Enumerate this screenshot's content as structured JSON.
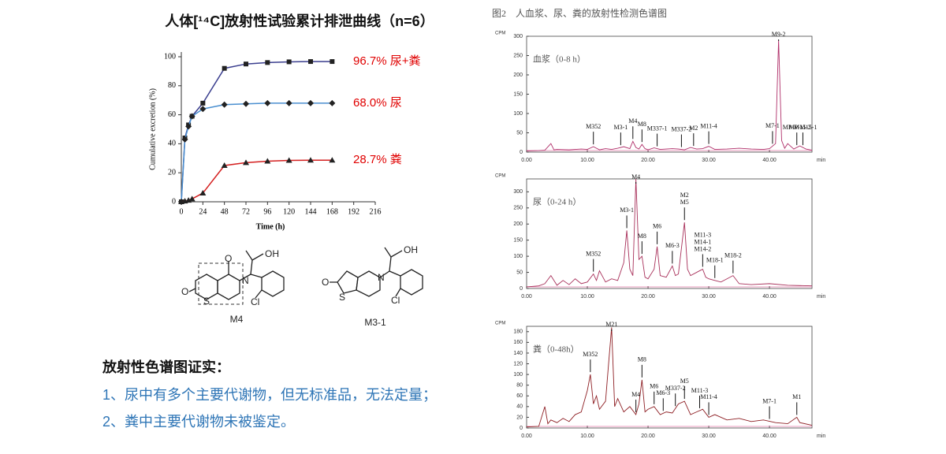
{
  "title": "人体[¹⁴C]放射性试验累计排泄曲线（n=6）",
  "figure_caption": "图2　人血浆、尿、粪的放射性检测色谱图",
  "chart_data": [
    {
      "type": "line",
      "x_label": "Time (h)",
      "y_label": "Cumulative excretion (%)",
      "label_color": "#e00000",
      "x": [
        0,
        4,
        8,
        12,
        24,
        48,
        72,
        96,
        120,
        144,
        168
      ],
      "series": [
        {
          "name": "96.7% 尿+粪",
          "color": "#3b3f8f",
          "marker": "square",
          "values": [
            0,
            44,
            53,
            59,
            68,
            92,
            95,
            96,
            96.5,
            96.7,
            96.7
          ]
        },
        {
          "name": "68.0% 尿",
          "color": "#4a8fd0",
          "marker": "diamond",
          "values": [
            0,
            43,
            52,
            59,
            64,
            67,
            67.5,
            68,
            68,
            68,
            68
          ]
        },
        {
          "name": "28.7% 粪",
          "color": "#d42020",
          "marker": "triangle",
          "values": [
            0,
            0.5,
            1,
            2,
            6,
            25,
            27,
            28,
            28.5,
            28.7,
            28.7
          ]
        }
      ],
      "xlim": [
        0,
        216
      ],
      "xticks": [
        0,
        24,
        48,
        72,
        96,
        120,
        144,
        168,
        192,
        216
      ],
      "ylim": [
        0,
        100
      ],
      "yticks": [
        0,
        20,
        40,
        60,
        80,
        100
      ]
    },
    {
      "type": "chromatogram",
      "panel_label": "血浆（0-8 h）",
      "y_label": "CPM",
      "x_unit": "min",
      "color": "#b0306a",
      "x": [
        0,
        2,
        3,
        4,
        4.5,
        5,
        7,
        9,
        10,
        11,
        12,
        13,
        14,
        15,
        16,
        17,
        17.5,
        18,
        18.5,
        19,
        19.5,
        20,
        21,
        22,
        24,
        25,
        26,
        27,
        28,
        29,
        30,
        31,
        33,
        35,
        37,
        39,
        40,
        41,
        41.5,
        42,
        42.5,
        43,
        44,
        45,
        46,
        47
      ],
      "values": [
        3,
        4,
        5,
        22,
        6,
        7,
        6,
        8,
        7,
        14,
        6,
        9,
        7,
        10,
        14,
        9,
        28,
        12,
        8,
        20,
        9,
        6,
        11,
        7,
        9,
        8,
        6,
        12,
        8,
        9,
        15,
        7,
        8,
        10,
        8,
        7,
        9,
        22,
        290,
        30,
        10,
        22,
        8,
        16,
        8,
        5
      ],
      "xlim": [
        0,
        47
      ],
      "xticks": [
        {
          "value": 0,
          "label": "0.00"
        },
        {
          "value": 10,
          "label": "10.00"
        },
        {
          "value": 20,
          "label": "20.00"
        },
        {
          "value": 30,
          "label": "30.00"
        },
        {
          "value": 40,
          "label": "40.00"
        }
      ],
      "ylim": [
        0,
        300
      ],
      "yticks": [
        0,
        50,
        100,
        150,
        200,
        250,
        300
      ],
      "peaks": [
        {
          "lines": [
            "M352"
          ],
          "x": 11
        },
        {
          "lines": [
            "M3-1"
          ],
          "x": 15.5
        },
        {
          "lines": [
            "M4"
          ],
          "x": 17.5
        },
        {
          "lines": [
            "M8"
          ],
          "x": 19
        },
        {
          "lines": [
            "M337-1"
          ],
          "x": 21.5
        },
        {
          "lines": [
            "M337-2"
          ],
          "x": 25.5
        },
        {
          "lines": [
            "M2"
          ],
          "x": 27.5
        },
        {
          "lines": [
            "M11-4"
          ],
          "x": 30
        },
        {
          "lines": [
            "M7-1"
          ],
          "x": 40.5
        },
        {
          "lines": [
            "M9-2"
          ],
          "x": 41.5
        },
        {
          "lines": [
            "MP-M15-2"
          ],
          "x": 44.5
        },
        {
          "lines": [
            "MP-M15-1"
          ],
          "x": 45.5
        }
      ]
    },
    {
      "type": "chromatogram",
      "panel_label": "尿（0-24 h）",
      "y_label": "CPM",
      "x_unit": "min",
      "color": "#a8305a",
      "x": [
        0,
        2,
        3,
        4,
        5,
        6,
        7,
        8,
        9,
        10,
        11,
        11.5,
        12,
        13,
        14,
        15,
        16,
        16.5,
        17,
        17.5,
        18,
        18.5,
        19,
        19.5,
        20,
        21,
        21.5,
        22,
        23,
        24,
        24.5,
        25,
        26,
        26.5,
        27,
        28,
        29,
        29.5,
        30,
        31,
        32,
        33,
        34,
        35,
        37,
        40,
        43,
        47
      ],
      "values": [
        5,
        8,
        15,
        40,
        10,
        25,
        12,
        30,
        15,
        20,
        45,
        25,
        55,
        20,
        30,
        25,
        80,
        180,
        60,
        40,
        340,
        90,
        100,
        35,
        30,
        60,
        130,
        40,
        35,
        70,
        40,
        45,
        205,
        60,
        40,
        50,
        60,
        35,
        30,
        25,
        20,
        30,
        40,
        15,
        12,
        15,
        10,
        8
      ],
      "xlim": [
        0,
        47
      ],
      "xticks": [
        {
          "value": 0,
          "label": "0.00"
        },
        {
          "value": 10,
          "label": "10.00"
        },
        {
          "value": 20,
          "label": "20.00"
        },
        {
          "value": 30,
          "label": "30.00"
        },
        {
          "value": 40,
          "label": "40.00"
        }
      ],
      "ylim": [
        0,
        340
      ],
      "yticks": [
        0,
        50,
        100,
        150,
        200,
        250,
        300
      ],
      "peaks": [
        {
          "lines": [
            "M352"
          ],
          "x": 11
        },
        {
          "lines": [
            "M3-1"
          ],
          "x": 16.5
        },
        {
          "lines": [
            "M4"
          ],
          "x": 18
        },
        {
          "lines": [
            "M8"
          ],
          "x": 19
        },
        {
          "lines": [
            "M6"
          ],
          "x": 21.5
        },
        {
          "lines": [
            "M6-3"
          ],
          "x": 24
        },
        {
          "lines": [
            "M2",
            "M5"
          ],
          "x": 26
        },
        {
          "lines": [
            "M11-3",
            "M14-1",
            "M14-2"
          ],
          "x": 29
        },
        {
          "lines": [
            "M18-1"
          ],
          "x": 31
        },
        {
          "lines": [
            "M18-2"
          ],
          "x": 34
        }
      ]
    },
    {
      "type": "chromatogram",
      "panel_label": "粪（0-48h）",
      "y_label": "CPM",
      "x_unit": "min",
      "color": "#8e1f24",
      "x": [
        0,
        2,
        3,
        3.5,
        4,
        5,
        6,
        7,
        8,
        9,
        10,
        10.5,
        11,
        11.5,
        12,
        13,
        13.5,
        14,
        14.5,
        15,
        16,
        17,
        18,
        18.5,
        19,
        19.5,
        20,
        21,
        22,
        23,
        24,
        25,
        26,
        27,
        28,
        29,
        30,
        31,
        33,
        35,
        37,
        39,
        41,
        43,
        44.5,
        45,
        47
      ],
      "values": [
        2,
        3,
        40,
        8,
        15,
        10,
        18,
        12,
        25,
        30,
        70,
        100,
        45,
        60,
        35,
        50,
        120,
        188,
        40,
        55,
        30,
        40,
        25,
        45,
        90,
        30,
        35,
        40,
        25,
        30,
        28,
        45,
        50,
        25,
        30,
        35,
        20,
        25,
        15,
        18,
        12,
        15,
        10,
        8,
        20,
        10,
        5
      ],
      "xlim": [
        0,
        47
      ],
      "xticks": [
        {
          "value": 0,
          "label": "0.00"
        },
        {
          "value": 10,
          "label": "10.00"
        },
        {
          "value": 20,
          "label": "20.00"
        },
        {
          "value": 30,
          "label": "30.00"
        },
        {
          "value": 40,
          "label": "40.00"
        }
      ],
      "ylim": [
        0,
        190
      ],
      "yticks": [
        0,
        20,
        40,
        60,
        80,
        100,
        120,
        140,
        160,
        180
      ],
      "peaks": [
        {
          "lines": [
            "M352"
          ],
          "x": 10.5
        },
        {
          "lines": [
            "M21"
          ],
          "x": 14
        },
        {
          "lines": [
            "M4"
          ],
          "x": 18
        },
        {
          "lines": [
            "M8"
          ],
          "x": 19
        },
        {
          "lines": [
            "M6"
          ],
          "x": 21
        },
        {
          "lines": [
            "M6-3"
          ],
          "x": 22.5
        },
        {
          "lines": [
            "M337-2"
          ],
          "x": 24.5
        },
        {
          "lines": [
            "M5"
          ],
          "x": 26
        },
        {
          "lines": [
            "M11-3"
          ],
          "x": 28.5
        },
        {
          "lines": [
            "M11-4"
          ],
          "x": 30
        },
        {
          "lines": [
            "M7-1"
          ],
          "x": 40
        },
        {
          "lines": [
            "M1"
          ],
          "x": 44.5
        }
      ]
    }
  ],
  "structures": [
    {
      "name": "M4",
      "atoms": [
        "O",
        "OH",
        "O",
        "N",
        "S",
        "Cl"
      ]
    },
    {
      "name": "M3-1",
      "atoms": [
        "OH",
        "O",
        "N",
        "S",
        "Cl"
      ]
    }
  ],
  "conclusion": {
    "heading": "放射性色谱图证实：",
    "items": [
      "1、尿中有多个主要代谢物，但无标准品，无法定量；",
      "2、粪中主要代谢物未被鉴定。"
    ]
  }
}
